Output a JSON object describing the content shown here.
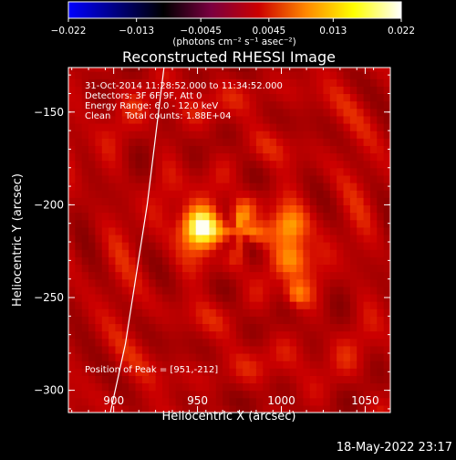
{
  "chart_data": {
    "type": "heatmap",
    "title": "Reconstructed RHESSI Image",
    "xlabel": "Heliocentric X (arcsec)",
    "ylabel": "Heliocentric Y (arcsec)",
    "xlim": [
      873,
      1065
    ],
    "ylim": [
      -312,
      -126
    ],
    "x_ticks": [
      900,
      950,
      1000,
      1050
    ],
    "y_ticks": [
      -300,
      -250,
      -200,
      -150
    ],
    "colorbar": {
      "range": [
        -0.022,
        0.022
      ],
      "tick_values": [
        -0.022,
        -0.013,
        -0.0045,
        0.0045,
        0.013,
        0.022
      ],
      "tick_labels": [
        "−0.022",
        "−0.013",
        "−0.0045",
        "0.0045",
        "0.013",
        "0.022"
      ],
      "units_label": "(photons cm⁻² s⁻¹ asec⁻²)"
    },
    "annotations": [
      "31-Oct-2014 11:28:52.000 to 11:34:52.000",
      "Detectors: 3F 6F 9F, Att 0",
      "Energy Range: 6.0 - 12.0 keV",
      "Clean     Total counts: 1.88E+04"
    ],
    "peak_label": "Position of Peak = [951,-212]",
    "peak": [
      951,
      -212
    ],
    "sources": [
      {
        "x": 951,
        "y": -212,
        "amp": 1.0,
        "sigma": 8
      },
      {
        "x": 978,
        "y": -210,
        "amp": 0.45,
        "sigma": 7
      },
      {
        "x": 1005,
        "y": -212,
        "amp": 0.55,
        "sigma": 7
      },
      {
        "x": 1006,
        "y": -228,
        "amp": 0.5,
        "sigma": 7
      },
      {
        "x": 1009,
        "y": -248,
        "amp": 0.35,
        "sigma": 5
      }
    ],
    "limb": [
      [
        930,
        -126
      ],
      [
        920,
        -200
      ],
      [
        907,
        -275
      ],
      [
        898,
        -312
      ]
    ],
    "colors": {
      "background": "#000000",
      "colormap": [
        "#0000ff",
        "#000080",
        "#000000",
        "#7a0040",
        "#cc0000",
        "#ff8800",
        "#ffff00",
        "#ffffff"
      ]
    }
  },
  "footer": {
    "timestamp": "18-May-2022 23:17"
  }
}
